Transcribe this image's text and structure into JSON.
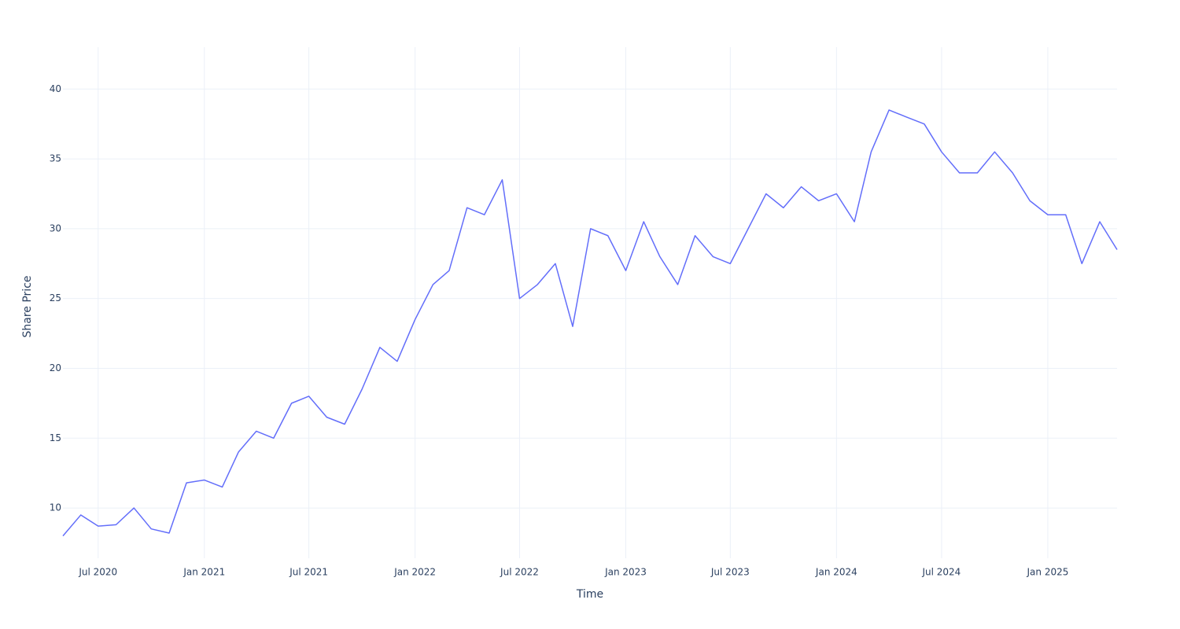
{
  "chart_data": {
    "type": "line",
    "x_label": "Time",
    "y_label": "Share Price",
    "x": [
      "2020-05",
      "2020-06",
      "2020-07",
      "2020-08",
      "2020-09",
      "2020-10",
      "2020-11",
      "2020-12",
      "2021-01",
      "2021-02",
      "2021-03",
      "2021-04",
      "2021-05",
      "2021-06",
      "2021-07",
      "2021-08",
      "2021-09",
      "2021-10",
      "2021-11",
      "2021-12",
      "2022-01",
      "2022-02",
      "2022-03",
      "2022-04",
      "2022-05",
      "2022-06",
      "2022-07",
      "2022-08",
      "2022-09",
      "2022-10",
      "2022-11",
      "2022-12",
      "2023-01",
      "2023-02",
      "2023-03",
      "2023-04",
      "2023-05",
      "2023-06",
      "2023-07",
      "2023-08",
      "2023-09",
      "2023-10",
      "2023-11",
      "2023-12",
      "2024-01",
      "2024-02",
      "2024-03",
      "2024-04",
      "2024-05",
      "2024-06",
      "2024-07",
      "2024-08",
      "2024-09",
      "2024-10",
      "2024-11",
      "2024-12",
      "2025-01",
      "2025-02",
      "2025-03",
      "2025-04",
      "2025-05"
    ],
    "series": [
      {
        "name": "Share Price",
        "color": "#636efa",
        "values": [
          8.0,
          9.5,
          8.7,
          8.8,
          10.0,
          8.5,
          8.2,
          11.8,
          12.0,
          11.5,
          14.0,
          15.5,
          15.0,
          17.5,
          18.0,
          16.5,
          16.0,
          18.5,
          21.5,
          20.5,
          23.5,
          26.0,
          27.0,
          31.5,
          31.0,
          33.5,
          25.0,
          26.0,
          27.5,
          23.0,
          30.0,
          29.5,
          27.0,
          30.5,
          28.0,
          26.0,
          29.5,
          28.0,
          27.5,
          30.0,
          32.5,
          31.5,
          33.0,
          32.0,
          32.5,
          30.5,
          35.5,
          38.5,
          38.0,
          37.5,
          35.5,
          34.0,
          34.0,
          35.5,
          34.0,
          32.0,
          31.0,
          31.0,
          27.5,
          30.5,
          28.5
        ]
      }
    ],
    "xlim": [
      "2020-05",
      "2025-05"
    ],
    "xticks": [
      {
        "value": "2020-07",
        "label": "Jul 2020"
      },
      {
        "value": "2021-01",
        "label": "Jan 2021"
      },
      {
        "value": "2021-07",
        "label": "Jul 2021"
      },
      {
        "value": "2022-01",
        "label": "Jan 2022"
      },
      {
        "value": "2022-07",
        "label": "Jul 2022"
      },
      {
        "value": "2023-01",
        "label": "Jan 2023"
      },
      {
        "value": "2023-07",
        "label": "Jul 2023"
      },
      {
        "value": "2024-01",
        "label": "Jan 2024"
      },
      {
        "value": "2024-07",
        "label": "Jul 2024"
      },
      {
        "value": "2025-01",
        "label": "Jan 2025"
      }
    ],
    "ylim": [
      6.4,
      43
    ],
    "yticks": [
      10,
      15,
      20,
      25,
      30,
      35,
      40
    ],
    "grid": true
  }
}
